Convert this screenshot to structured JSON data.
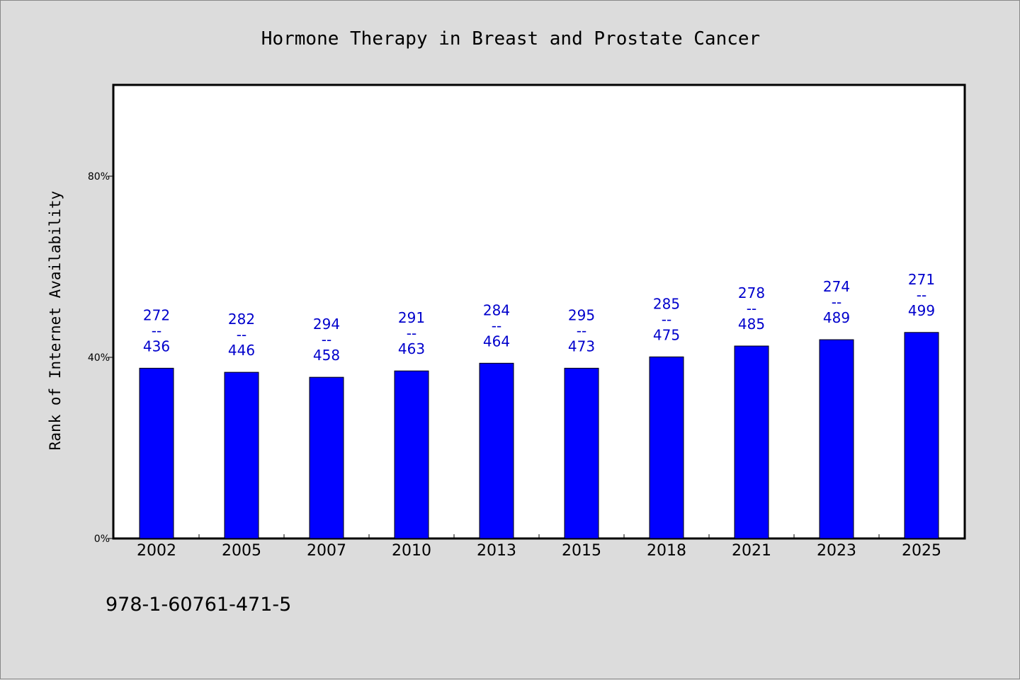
{
  "chart_data": {
    "type": "bar",
    "title": "Hormone Therapy in Breast and Prostate Cancer",
    "ylabel": "Rank of Internet Availability",
    "xlabel": "",
    "categories": [
      "2002",
      "2005",
      "2007",
      "2010",
      "2013",
      "2015",
      "2018",
      "2021",
      "2023",
      "2025"
    ],
    "values": [
      37.6,
      36.7,
      35.6,
      37.0,
      38.7,
      37.6,
      40.1,
      42.5,
      43.9,
      45.5
    ],
    "labels_top": [
      "272",
      "282",
      "294",
      "291",
      "284",
      "295",
      "285",
      "278",
      "274",
      "271"
    ],
    "labels_bottom": [
      "436",
      "446",
      "458",
      "463",
      "464",
      "473",
      "475",
      "485",
      "489",
      "499"
    ],
    "label_separator": "--",
    "ylim": [
      0,
      100
    ],
    "yticks": [
      0,
      40,
      80
    ],
    "ytick_labels": [
      "0%",
      "40%",
      "80%"
    ],
    "bar_color": "#0000ff",
    "label_color": "#0000cc",
    "grid": false,
    "legend": "none"
  },
  "footer": {
    "isbn": "978-1-60761-471-5"
  }
}
